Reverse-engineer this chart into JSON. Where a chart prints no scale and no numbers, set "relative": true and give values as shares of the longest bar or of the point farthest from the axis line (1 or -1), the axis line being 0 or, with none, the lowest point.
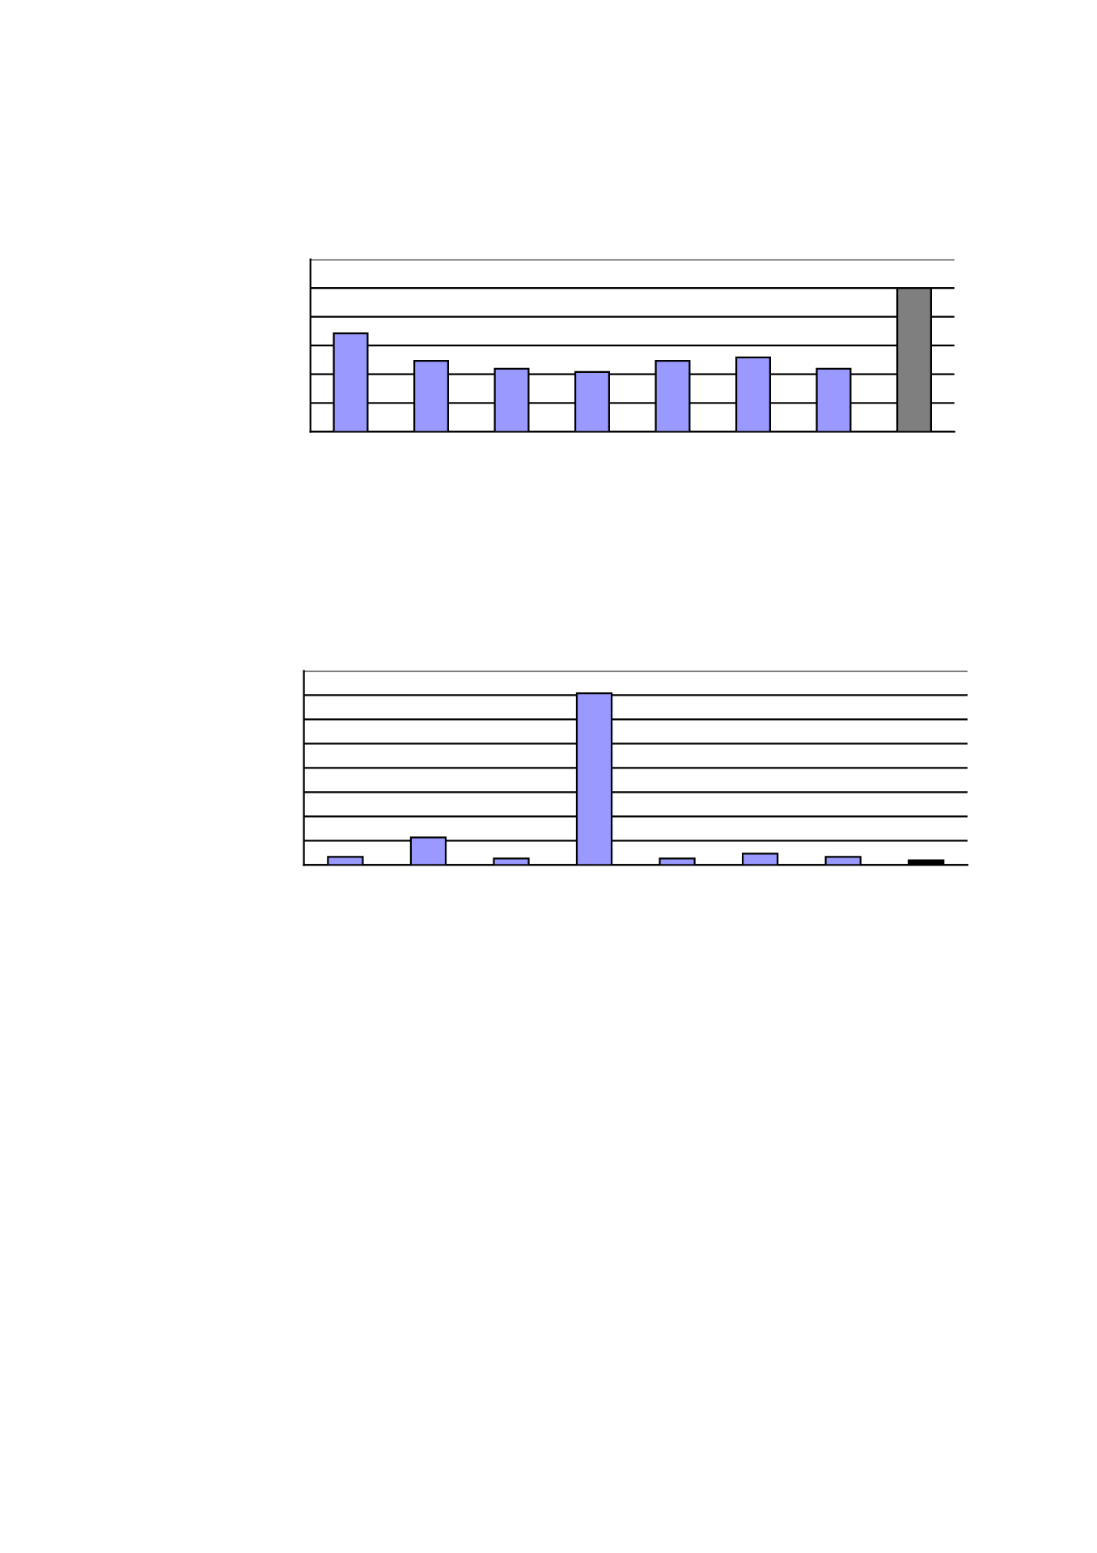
{
  "chart_data": [
    {
      "type": "bar",
      "relative": true,
      "categories": [
        null,
        null,
        null,
        null,
        null,
        null,
        null,
        null
      ],
      "values": [
        0.685,
        0.494,
        0.438,
        0.416,
        0.494,
        0.517,
        0.438,
        1
      ],
      "colors": [
        "#9999ff",
        "#9999ff",
        "#9999ff",
        "#9999ff",
        "#9999ff",
        "#9999ff",
        "#9999ff",
        "#7f7f7f"
      ],
      "grid": "y",
      "tick_labels": false
    },
    {
      "type": "bar",
      "relative": true,
      "categories": [
        null,
        null,
        null,
        null,
        null,
        null,
        null,
        null
      ],
      "values": [
        0.047,
        0.16,
        0.038,
        1,
        0.038,
        0.066,
        0.047,
        0.028
      ],
      "colors": [
        "#9999ff",
        "#9999ff",
        "#9999ff",
        "#9999ff",
        "#9999ff",
        "#9999ff",
        "#9999ff",
        "#000000"
      ],
      "grid": "y",
      "tick_labels": false
    }
  ]
}
